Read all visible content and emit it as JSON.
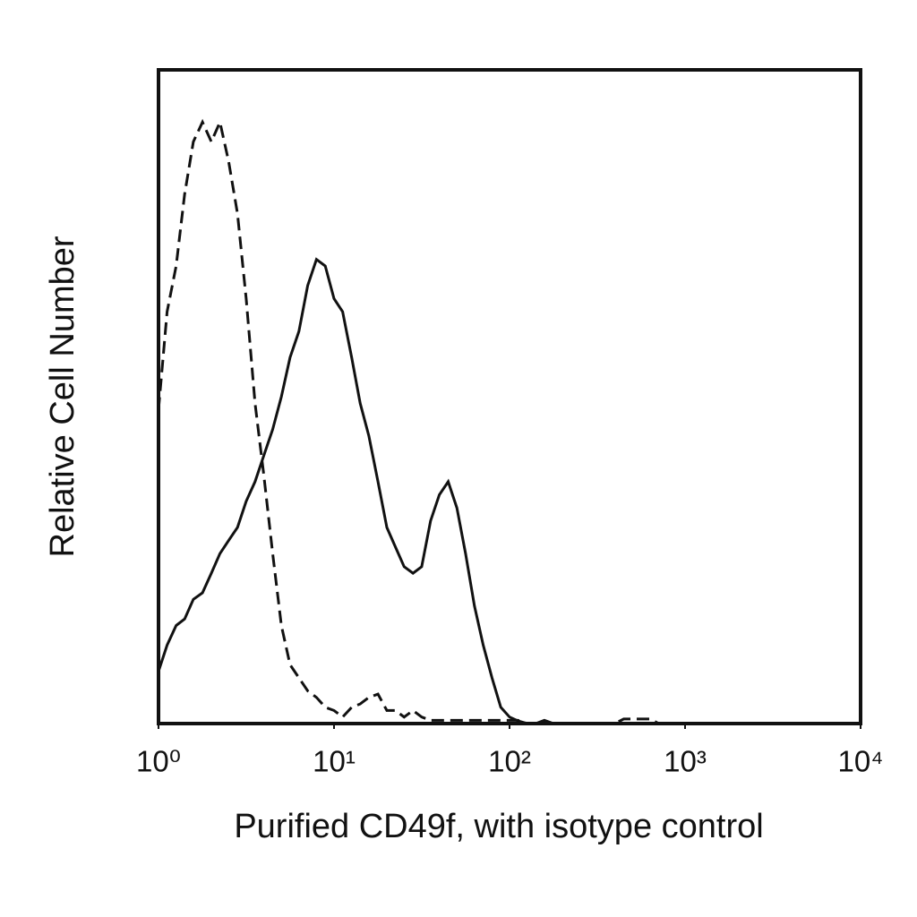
{
  "chart_data": {
    "type": "line",
    "x_label": "Purified CD49f, with isotype control",
    "y_label": "Relative Cell Number",
    "x_log": true,
    "xlim": [
      1,
      10000
    ],
    "ylim": [
      0,
      100
    ],
    "xticks": [
      {
        "value": 1,
        "label": "10⁰"
      },
      {
        "value": 10,
        "label": "10¹"
      },
      {
        "value": 100,
        "label": "10²"
      },
      {
        "value": 1000,
        "label": "10³"
      },
      {
        "value": 10000,
        "label": "10⁴"
      }
    ],
    "x": [
      1,
      1.12,
      1.26,
      1.41,
      1.58,
      1.78,
      2,
      2.24,
      2.51,
      2.82,
      3.16,
      3.55,
      3.98,
      4.47,
      5.01,
      5.62,
      6.31,
      7.08,
      7.94,
      8.91,
      10,
      11.2,
      12.6,
      14.1,
      15.8,
      17.8,
      20,
      22.4,
      25.1,
      28.2,
      31.6,
      35.5,
      39.8,
      44.7,
      50.1,
      56.2,
      63.1,
      70.8,
      79.4,
      89.1,
      100,
      112,
      126,
      141,
      158,
      178,
      200,
      224,
      251,
      282,
      316,
      355,
      398,
      447,
      501,
      562,
      631,
      708,
      794,
      891,
      1000
    ],
    "series": [
      {
        "color": "#111111",
        "line_style": "solid",
        "values": [
          8,
          12,
          15,
          16,
          19,
          20,
          23,
          26,
          28,
          30,
          34,
          37,
          41,
          45,
          50,
          56,
          60,
          67,
          71,
          70,
          65,
          63,
          56,
          49,
          44,
          37,
          30,
          27,
          24,
          23,
          24,
          31,
          35,
          37,
          33,
          26,
          18,
          12,
          7,
          2.5,
          1,
          0.4,
          0,
          0,
          0.5,
          0,
          0,
          0,
          0,
          0,
          0,
          0,
          0,
          0,
          0,
          0,
          0,
          0,
          0,
          0,
          0
        ]
      },
      {
        "color": "#111111",
        "line_style": "dashed",
        "values": [
          48,
          63,
          70,
          81,
          89,
          92,
          89,
          92,
          86,
          78,
          65,
          49,
          38,
          26,
          15,
          9,
          7,
          5,
          4,
          2.5,
          2,
          1,
          2.5,
          3,
          4,
          4.5,
          2,
          2,
          1,
          2,
          1,
          0.5,
          0.5,
          0.5,
          0.5,
          0.5,
          0.5,
          0.5,
          0.5,
          0.5,
          0.5,
          0.5,
          0,
          0,
          0,
          0,
          0,
          0,
          0,
          0,
          0,
          0,
          0,
          0.7,
          0.7,
          0.7,
          0.7,
          0,
          0,
          0,
          0
        ]
      }
    ]
  }
}
